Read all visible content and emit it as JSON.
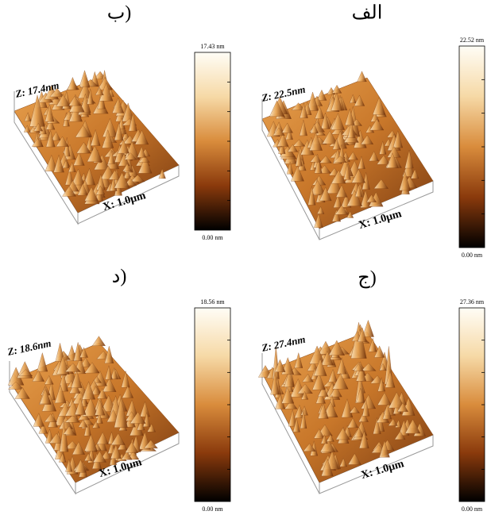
{
  "panels": [
    {
      "label": "الف",
      "z_label": "Z: 22.5nm",
      "x_label": "X: 1.0μm",
      "scale_max": "22.52 nm",
      "scale_min": "0.00 nm"
    },
    {
      "label": "ب)",
      "z_label": "Z: 17.4nm",
      "x_label": "X: 1.0μm",
      "scale_max": "17.43 nm",
      "scale_min": "0.00 nm"
    },
    {
      "label": "ج)",
      "z_label": "Z: 27.4nm",
      "x_label": "X: 1.0μm",
      "scale_max": "27.36 nm",
      "scale_min": "0.00 nm"
    },
    {
      "label": "د)",
      "z_label": "Z: 18.6nm",
      "x_label": "X: 1.0μm",
      "scale_max": "18.56 nm",
      "scale_min": "0.00 nm"
    }
  ]
}
